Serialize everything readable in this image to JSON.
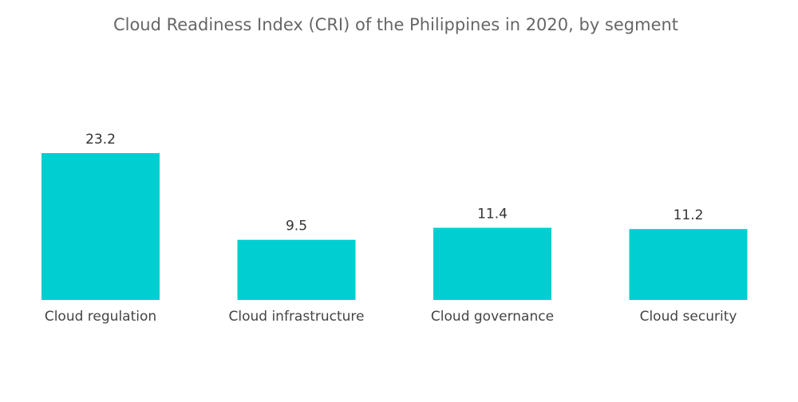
{
  "chart_data": {
    "type": "bar",
    "title": "Cloud Readiness Index (CRI) of the Philippines in 2020, by segment",
    "categories": [
      "Cloud regulation",
      "Cloud infrastructure",
      "Cloud governance",
      "Cloud security"
    ],
    "values": [
      23.2,
      9.5,
      11.4,
      11.2
    ],
    "value_labels": [
      "23.2",
      "9.5",
      "11.4",
      "11.2"
    ],
    "xlabel": "",
    "ylabel": "",
    "ylim": [
      0,
      23.2
    ],
    "grid": false,
    "legend": "none",
    "bar_color": "#00CED1"
  }
}
